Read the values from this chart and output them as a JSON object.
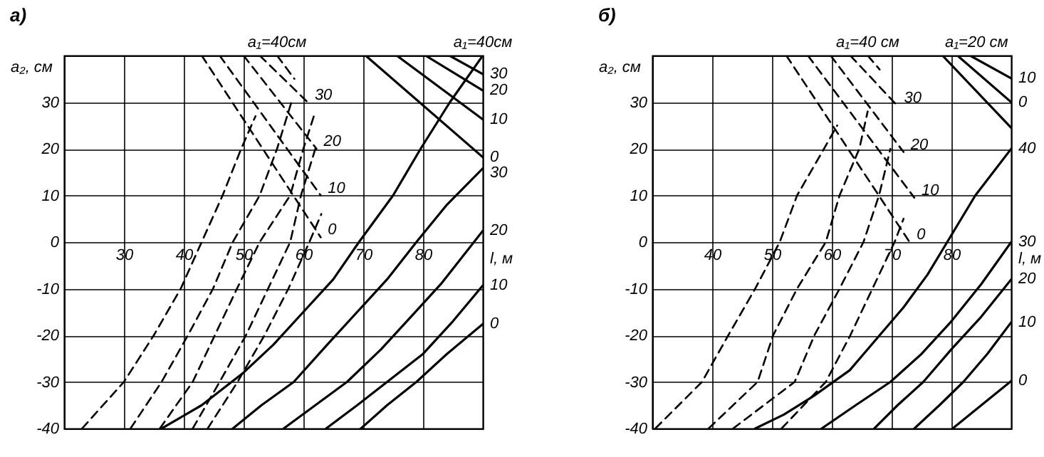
{
  "chart_data": [
    {
      "type": "line",
      "title": "а)",
      "xlabel": "l, м",
      "ylabel": "a₂, см",
      "xlim": [
        20,
        90
      ],
      "ylim": [
        -40,
        40
      ],
      "xticks": [
        30,
        40,
        50,
        60,
        70,
        80
      ],
      "yticks": [
        -40,
        -30,
        -20,
        -10,
        0,
        10,
        20,
        30,
        {
          "value": 40,
          "label": null
        }
      ],
      "grid": true,
      "series": [
        {
          "color": "#000000",
          "line_style": "dashed",
          "x": [
            43,
            62.9
          ],
          "values": [
            40,
            1
          ]
        },
        {
          "color": "#000000",
          "line_style": "dashed",
          "x": [
            46,
            62.9
          ],
          "values": [
            40,
            10
          ]
        },
        {
          "color": "#000000",
          "line_style": "dashed",
          "x": [
            50,
            62.2
          ],
          "values": [
            40,
            20
          ]
        },
        {
          "color": "#000000",
          "line_style": "dashed",
          "x": [
            52.7,
            60.7
          ],
          "values": [
            40,
            30
          ]
        },
        {
          "color": "#000000",
          "line_style": "dashed",
          "x": [
            55.6,
            58.5
          ],
          "values": [
            40,
            35
          ]
        },
        {
          "color": "#000000",
          "line_style": "dashed",
          "x": [
            23,
            30,
            35,
            39.5,
            43,
            46.5,
            49.6,
            52
          ],
          "values": [
            -40,
            -30,
            -20,
            -10,
            0,
            10,
            20,
            27
          ]
        },
        {
          "color": "#000000",
          "line_style": "dashed",
          "x": [
            31.1,
            36.3,
            40.7,
            44.9,
            48.2,
            52.7,
            55.6,
            58
          ],
          "values": [
            -40,
            -30,
            -20,
            -10,
            0,
            10,
            20,
            30
          ]
        },
        {
          "color": "#000000",
          "line_style": "dashed",
          "x": [
            36,
            41.5,
            45.2,
            48.9,
            52.7,
            57.8,
            60,
            62
          ],
          "values": [
            -40,
            -30,
            -20,
            -10,
            0,
            10,
            20,
            28
          ]
        },
        {
          "color": "#000000",
          "line_style": "dashed",
          "x": [
            41.5,
            46,
            50.4,
            54.1,
            57.8,
            59.6,
            62
          ],
          "values": [
            -40,
            -30,
            -20,
            -10,
            0,
            10,
            20
          ]
        },
        {
          "color": "#000000",
          "line_style": "dashed",
          "x": [
            44,
            49,
            53.5,
            57.5,
            61,
            63
          ],
          "values": [
            -40,
            -30,
            -20,
            -10,
            0,
            6
          ]
        },
        {
          "color": "#000000",
          "line_style": "solid",
          "x": [
            36.3,
            43,
            50,
            55,
            60,
            65,
            69.3,
            75,
            79.6,
            84.5,
            90
          ],
          "values": [
            -40,
            -35,
            -28,
            -22,
            -15,
            -8,
            0,
            10,
            20,
            30,
            40
          ]
        },
        {
          "color": "#000000",
          "line_style": "solid",
          "x": [
            48.2,
            53,
            58.4,
            64,
            69,
            74,
            78.9,
            84,
            90
          ],
          "values": [
            -40,
            -35,
            -30,
            -22,
            -15,
            -8,
            0,
            8,
            15.8
          ]
        },
        {
          "color": "#000000",
          "line_style": "solid",
          "x": [
            56.7,
            62,
            67.3,
            73,
            78,
            83,
            90
          ],
          "values": [
            -40,
            -35,
            -30,
            -23,
            -16,
            -9,
            2.4
          ]
        },
        {
          "color": "#000000",
          "line_style": "solid",
          "x": [
            63.8,
            69,
            74,
            80,
            85,
            90
          ],
          "values": [
            -40,
            -35,
            -30,
            -24,
            -17,
            -9.3
          ]
        },
        {
          "color": "#000000",
          "line_style": "solid",
          "x": [
            69.6,
            74,
            78.9,
            84,
            90
          ],
          "values": [
            -40,
            -35,
            -30,
            -24,
            -17.6
          ]
        },
        {
          "color": "#000000",
          "line_style": "solid",
          "x": [
            70.4,
            90
          ],
          "values": [
            40,
            18.2
          ]
        },
        {
          "color": "#000000",
          "line_style": "solid",
          "x": [
            75.6,
            90
          ],
          "values": [
            40,
            26.3
          ]
        },
        {
          "color": "#000000",
          "line_style": "solid",
          "x": [
            80.4,
            90
          ],
          "values": [
            40,
            32.5
          ]
        },
        {
          "color": "#000000",
          "line_style": "solid",
          "x": [
            84.4,
            90
          ],
          "values": [
            40,
            36
          ]
        }
      ],
      "annotations": [
        {
          "text": "a₁=40см",
          "x": 55.6,
          "y": 38
        },
        {
          "text": "30",
          "x": 60.7,
          "y": 30
        },
        {
          "text": "20",
          "x": 62.2,
          "y": 20
        },
        {
          "text": "10",
          "x": 62.9,
          "y": 10
        },
        {
          "text": "0",
          "x": 62.9,
          "y": 1
        },
        {
          "text": "a₁=40см",
          "x": 90,
          "y": 40
        },
        {
          "text": "30",
          "x": 90,
          "y": 36
        },
        {
          "text": "20",
          "x": 90,
          "y": 32.5
        },
        {
          "text": "10",
          "x": 90,
          "y": 26.3
        },
        {
          "text": "0",
          "x": 90,
          "y": 18.2
        },
        {
          "text": "30",
          "x": 90,
          "y": 15.8
        },
        {
          "text": "20",
          "x": 90,
          "y": 2.4
        },
        {
          "text": "10",
          "x": 90,
          "y": -9.3
        },
        {
          "text": "0",
          "x": 90,
          "y": -17.6
        }
      ]
    },
    {
      "type": "line",
      "title": "б)",
      "xlabel": "l, м",
      "ylabel": "a₂, см",
      "xlim": [
        30,
        90
      ],
      "ylim": [
        -40,
        40
      ],
      "xticks": [
        40,
        50,
        60,
        70,
        80
      ],
      "yticks": [
        -40,
        -30,
        -20,
        -10,
        0,
        10,
        20,
        30,
        {
          "value": 40,
          "label": null
        }
      ],
      "grid": true,
      "series": [
        {
          "color": "#000000",
          "line_style": "dashed",
          "x": [
            52.4,
            73
          ],
          "values": [
            40,
            0
          ]
        },
        {
          "color": "#000000",
          "line_style": "dashed",
          "x": [
            56,
            73.8
          ],
          "values": [
            40,
            9.5
          ]
        },
        {
          "color": "#000000",
          "line_style": "dashed",
          "x": [
            59.8,
            72
          ],
          "values": [
            40,
            19.3
          ]
        },
        {
          "color": "#000000",
          "line_style": "dashed",
          "x": [
            63.1,
            70.9
          ],
          "values": [
            40,
            29.3
          ]
        },
        {
          "color": "#000000",
          "line_style": "dashed",
          "x": [
            66,
            68
          ],
          "values": [
            40,
            37
          ]
        },
        {
          "color": "#000000",
          "line_style": "dashed",
          "x": [
            30.5,
            38.3,
            42.7,
            47.2,
            51.3,
            54.2,
            58.7,
            60.9
          ],
          "values": [
            -40,
            -30,
            -20,
            -10,
            0,
            10,
            20,
            25
          ]
        },
        {
          "color": "#000000",
          "line_style": "dashed",
          "x": [
            39.4,
            47.6,
            50.2,
            54.2,
            59,
            61.3,
            64.6,
            66
          ],
          "values": [
            -40,
            -30,
            -20,
            -10,
            0,
            10,
            20,
            28
          ]
        },
        {
          "color": "#000000",
          "line_style": "dashed",
          "x": [
            43.5,
            53.8,
            57.1,
            61.3,
            65.3,
            67.9,
            69.8
          ],
          "values": [
            -40,
            -30,
            -20,
            -10,
            0,
            10,
            20
          ]
        },
        {
          "color": "#000000",
          "line_style": "dashed",
          "x": [
            51.6,
            59,
            63.1,
            66.8,
            70.5,
            72
          ],
          "values": [
            -40,
            -30,
            -20,
            -10,
            0,
            5
          ]
        },
        {
          "color": "#000000",
          "line_style": "solid",
          "x": [
            47.2,
            52,
            57,
            63,
            68,
            72,
            76,
            79.3,
            84,
            90
          ],
          "values": [
            -40,
            -37,
            -33,
            -27.5,
            -20,
            -14,
            -7,
            0,
            10,
            20
          ]
        },
        {
          "color": "#000000",
          "line_style": "solid",
          "x": [
            58.3,
            64,
            69.8,
            75,
            80,
            85,
            90
          ],
          "values": [
            -40,
            -35,
            -30,
            -24,
            -17,
            -9,
            0
          ]
        },
        {
          "color": "#000000",
          "line_style": "solid",
          "x": [
            67.1,
            71,
            75.3,
            80,
            85,
            90
          ],
          "values": [
            -40,
            -35,
            -30,
            -23,
            -16,
            -8
          ]
        },
        {
          "color": "#000000",
          "line_style": "solid",
          "x": [
            73.8,
            78,
            82,
            86,
            90
          ],
          "values": [
            -40,
            -35,
            -30,
            -24,
            -17.2
          ]
        },
        {
          "color": "#000000",
          "line_style": "solid",
          "x": [
            80.2,
            85,
            90
          ],
          "values": [
            -40,
            -35,
            -29.8
          ]
        },
        {
          "color": "#000000",
          "line_style": "solid",
          "x": [
            78.5,
            90
          ],
          "values": [
            40,
            24.5
          ]
        },
        {
          "color": "#000000",
          "line_style": "solid",
          "x": [
            81,
            90
          ],
          "values": [
            40,
            30
          ]
        },
        {
          "color": "#000000",
          "line_style": "solid",
          "x": [
            83.1,
            90
          ],
          "values": [
            40,
            35.1
          ]
        }
      ],
      "annotations": [
        {
          "text": "a₁=40 см",
          "x": 66,
          "y": 38
        },
        {
          "text": "a₁=20 см",
          "x": 84.2,
          "y": 40
        },
        {
          "text": "30",
          "x": 70.9,
          "y": 29.3
        },
        {
          "text": "20",
          "x": 72,
          "y": 19.3
        },
        {
          "text": "10",
          "x": 73.8,
          "y": 9.5
        },
        {
          "text": "0",
          "x": 73,
          "y": 0
        },
        {
          "text": "10",
          "x": 90,
          "y": 35.1
        },
        {
          "text": "0",
          "x": 90,
          "y": 30
        },
        {
          "text": "40",
          "x": 90,
          "y": 20
        },
        {
          "text": "30",
          "x": 90,
          "y": 0
        },
        {
          "text": "20",
          "x": 90,
          "y": -8
        },
        {
          "text": "10",
          "x": 90,
          "y": -17.2
        },
        {
          "text": "0",
          "x": 90,
          "y": -29.8
        }
      ]
    }
  ]
}
